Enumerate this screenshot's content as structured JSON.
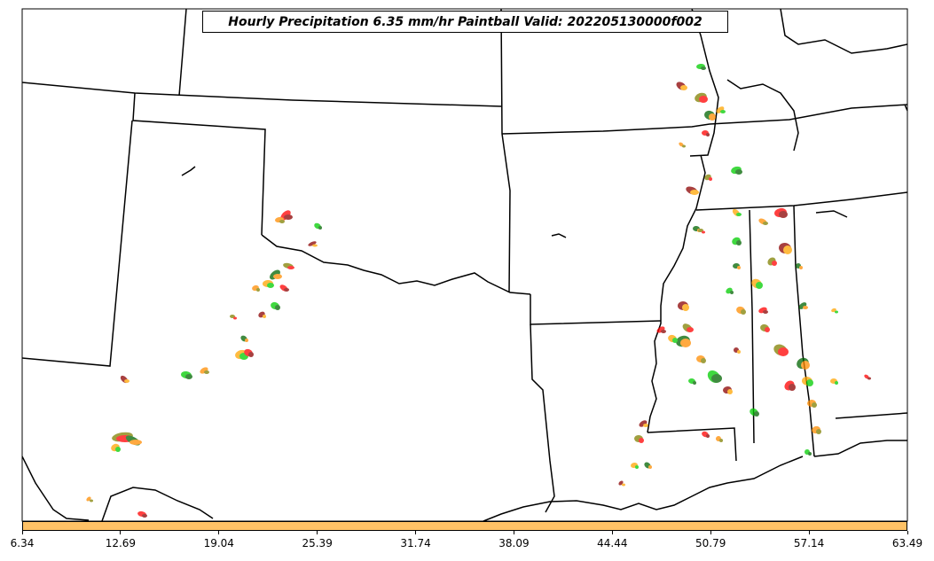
{
  "title": "Hourly Precipitation 6.35 mm/hr Paintball Valid: 202205130000f002",
  "colorbar": {
    "color": "#ffc266",
    "ticks": [
      "6.34",
      "12.69",
      "19.04",
      "25.39",
      "31.74",
      "38.09",
      "44.44",
      "50.79",
      "57.14",
      "63.49"
    ]
  },
  "paint_colors": [
    "#ff0000",
    "#ff8c00",
    "#00cc00",
    "#8b0000",
    "#808000",
    "#006400",
    "#ffa500"
  ]
}
